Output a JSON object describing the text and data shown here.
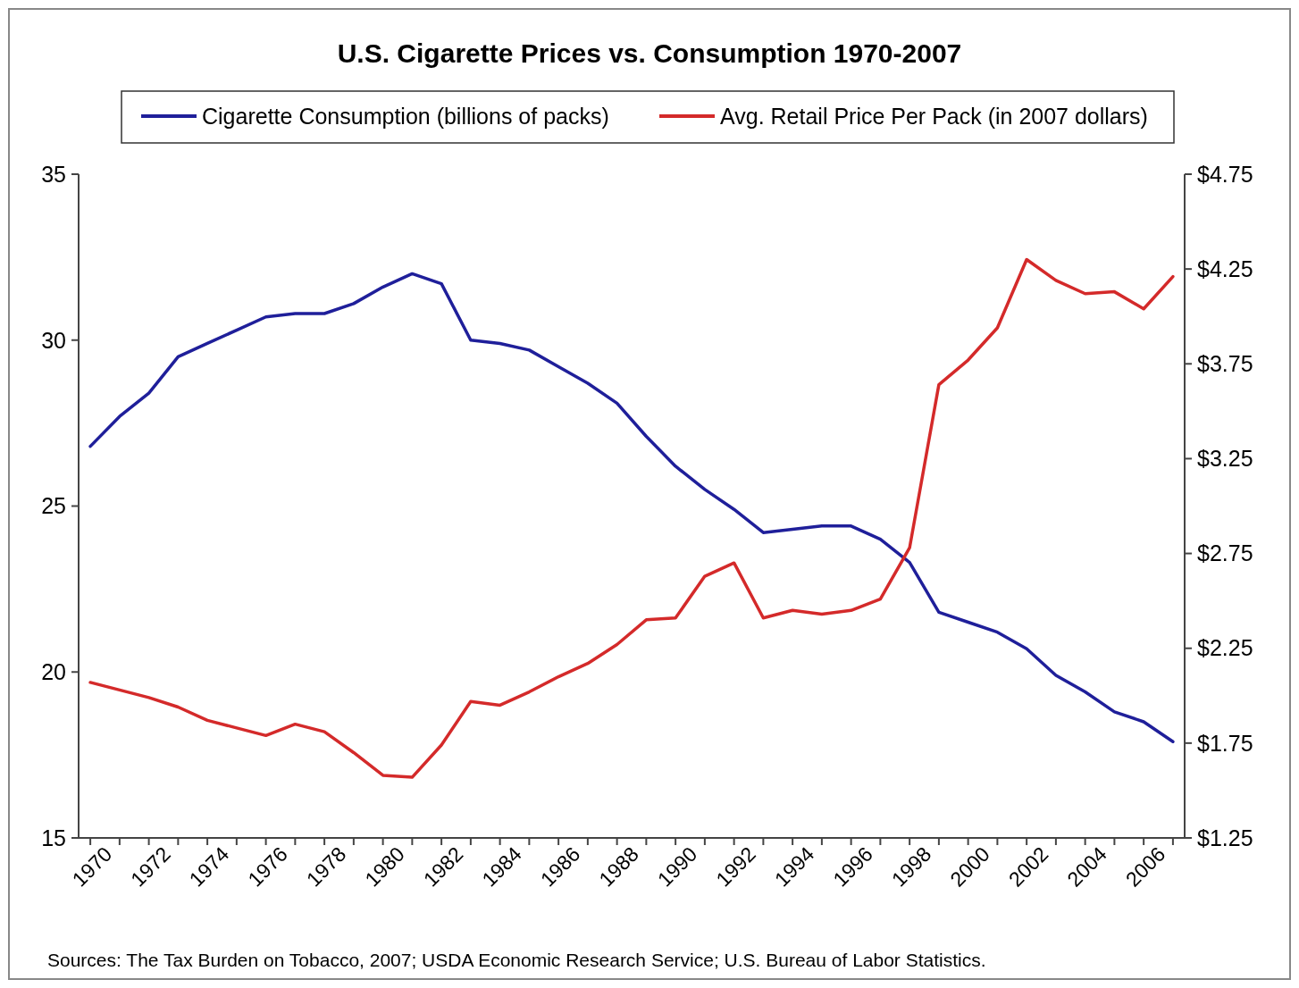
{
  "chart_data": {
    "type": "line",
    "title": "U.S. Cigarette Prices vs. Consumption 1970-2007",
    "categories": [
      "1970",
      null,
      "1972",
      null,
      "1974",
      null,
      "1976",
      null,
      "1978",
      null,
      "1980",
      null,
      "1982",
      null,
      "1984",
      null,
      "1986",
      null,
      "1988",
      null,
      "1990",
      null,
      "1992",
      null,
      "1994",
      null,
      "1996",
      null,
      "1998",
      null,
      "2000",
      null,
      "2002",
      null,
      "2004",
      null,
      "2006",
      null
    ],
    "series": [
      {
        "name": "Cigarette Consumption (billions of packs)",
        "color": "#1f1f9a",
        "values": [
          26.8,
          27.7,
          28.4,
          29.5,
          29.9,
          30.3,
          30.7,
          30.8,
          30.8,
          31.1,
          31.6,
          32.0,
          31.7,
          30.0,
          29.9,
          29.7,
          29.2,
          28.7,
          28.1,
          27.1,
          26.2,
          25.5,
          24.9,
          24.2,
          24.3,
          24.4,
          24.4,
          24.0,
          23.3,
          21.8,
          21.5,
          21.2,
          20.7,
          19.9,
          19.4,
          18.8,
          18.5,
          17.9
        ]
      },
      {
        "name": "Avg. Retail Price Per Pack (in 2007 dollars)",
        "color": "#d42a2a",
        "axis": "y2",
        "values": [
          2.07,
          2.03,
          1.99,
          1.94,
          1.87,
          1.83,
          1.79,
          1.85,
          1.81,
          1.7,
          1.58,
          1.57,
          1.74,
          1.97,
          1.95,
          2.02,
          2.1,
          2.17,
          2.27,
          2.4,
          2.41,
          2.63,
          2.7,
          2.41,
          2.45,
          2.43,
          2.45,
          2.51,
          2.78,
          3.64,
          3.77,
          3.94,
          4.3,
          4.19,
          4.12,
          4.13,
          4.04,
          4.21
        ]
      }
    ],
    "ylim": [
      15,
      35
    ],
    "yticks": [
      15,
      20,
      25,
      30,
      35
    ],
    "y2lim": [
      1.25,
      4.75
    ],
    "y2ticks": [
      {
        "value": 1.25,
        "label": "$1.25"
      },
      {
        "value": 1.75,
        "label": "$1.75"
      },
      {
        "value": 2.25,
        "label": "$2.25"
      },
      {
        "value": 2.75,
        "label": "$2.75"
      },
      {
        "value": 3.25,
        "label": "$3.25"
      },
      {
        "value": 3.75,
        "label": "$3.75"
      },
      {
        "value": 4.25,
        "label": "$4.25"
      },
      {
        "value": 4.75,
        "label": "$4.75"
      }
    ],
    "legend": "top",
    "grid": false,
    "line_style": "solid",
    "marker": "none",
    "annotations": [
      "Sources: The Tax Burden on Tobacco, 2007; USDA Economic Research Service; U.S. Bureau of Labor Statistics."
    ]
  }
}
